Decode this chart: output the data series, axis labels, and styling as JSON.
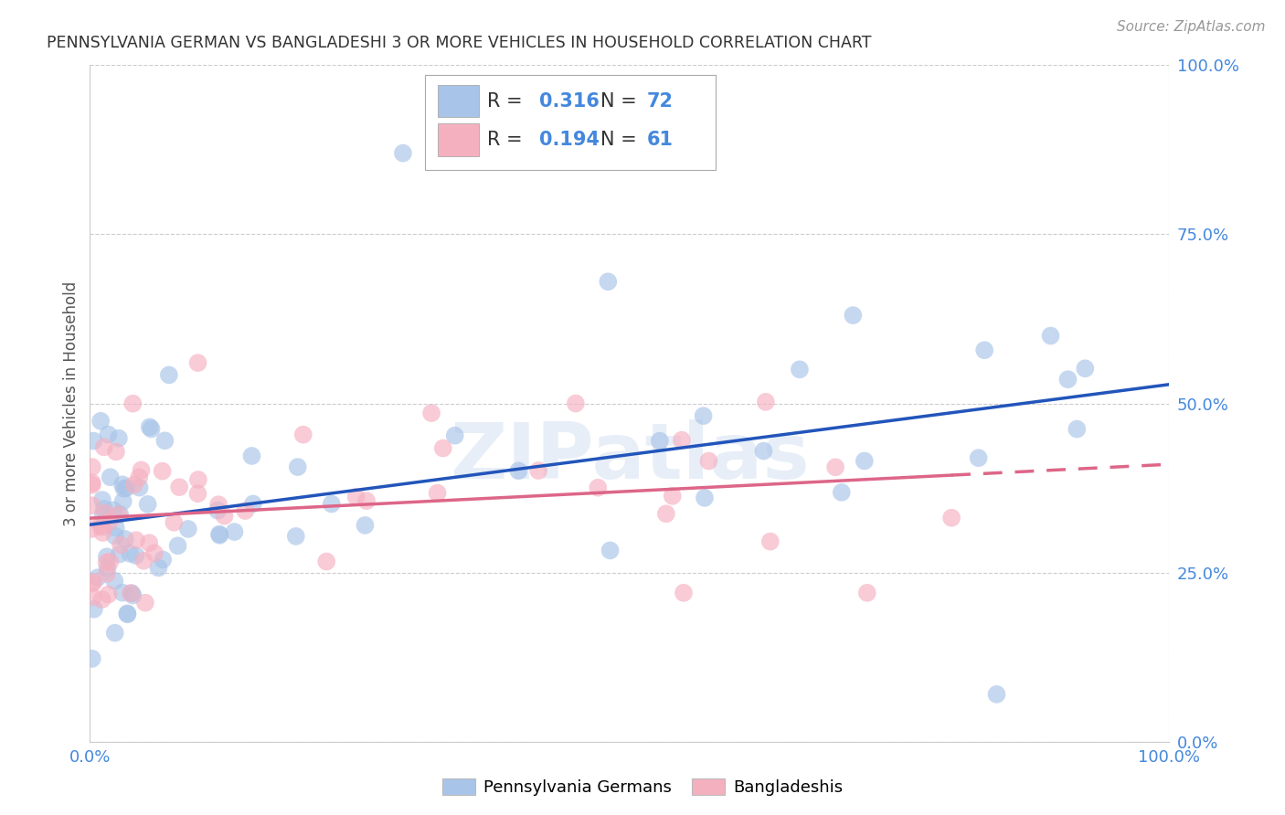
{
  "title": "PENNSYLVANIA GERMAN VS BANGLADESHI 3 OR MORE VEHICLES IN HOUSEHOLD CORRELATION CHART",
  "source": "Source: ZipAtlas.com",
  "ylabel": "3 or more Vehicles in Household",
  "legend_blue_R": "0.316",
  "legend_blue_N": "72",
  "legend_pink_R": "0.194",
  "legend_pink_N": "61",
  "legend_label_blue": "Pennsylvania Germans",
  "legend_label_pink": "Bangladeshis",
  "watermark": "ZIPatlas",
  "blue_color": "#a8c4e8",
  "pink_color": "#f5b0c0",
  "blue_line_color": "#2255bb",
  "pink_line_color": "#dd6688",
  "title_color": "#333333",
  "axis_label_color": "#4488dd",
  "grid_color": "#cccccc",
  "background_color": "#ffffff",
  "xlim": [
    0,
    100
  ],
  "ylim": [
    0,
    100
  ],
  "ytick_labels": [
    "0.0%",
    "25.0%",
    "50.0%",
    "75.0%",
    "100.0%"
  ],
  "ytick_values": [
    0,
    25,
    50,
    75,
    100
  ]
}
